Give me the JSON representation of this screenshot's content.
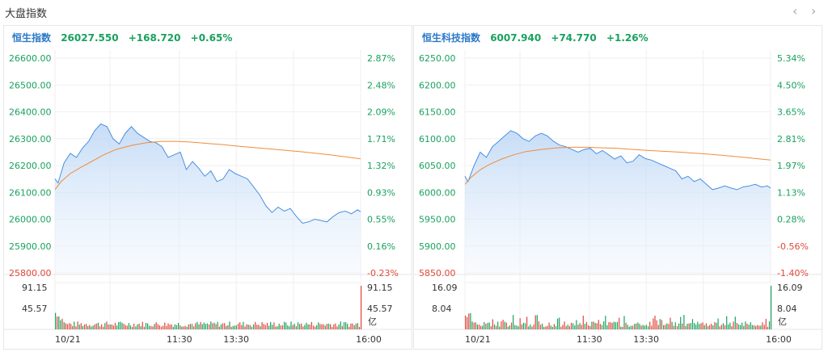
{
  "header": {
    "title": "大盘指数",
    "prev_icon": "chevron-left-icon",
    "next_icon": "chevron-right-icon",
    "prev_glyph": "‹",
    "next_glyph": "›"
  },
  "colors": {
    "up": "#19a15f",
    "down": "#e0483b",
    "name": "#2a78c8",
    "line": "#4a90e2",
    "avg": "#f08c3a"
  },
  "chart_data": [
    {
      "type": "line",
      "name": "恒生指数",
      "last": "26027.550",
      "change": "+168.720",
      "change_pct": "+0.65%",
      "y_ticks": [
        "26600.00",
        "26500.00",
        "26400.00",
        "26300.00",
        "26200.00",
        "26100.00",
        "26000.00",
        "25900.00",
        "25800.00"
      ],
      "y_tick_values": [
        26600,
        26500,
        26400,
        26300,
        26200,
        26100,
        26000,
        25900,
        25800
      ],
      "pct_ticks": [
        "2.87%",
        "2.48%",
        "2.09%",
        "1.71%",
        "1.32%",
        "0.93%",
        "0.55%",
        "0.16%",
        "-0.23%"
      ],
      "ylim": [
        25800,
        26600
      ],
      "x_labels": [
        "10/21",
        "11:30",
        "13:30",
        "16:00"
      ],
      "x_label_pos": [
        0,
        0.407,
        0.593,
        1
      ],
      "price_x": [
        0,
        0.01,
        0.03,
        0.05,
        0.07,
        0.09,
        0.11,
        0.13,
        0.15,
        0.17,
        0.19,
        0.21,
        0.23,
        0.25,
        0.27,
        0.29,
        0.31,
        0.33,
        0.35,
        0.37,
        0.39,
        0.41,
        0.43,
        0.45,
        0.47,
        0.49,
        0.51,
        0.53,
        0.55,
        0.57,
        0.59,
        0.61,
        0.63,
        0.65,
        0.67,
        0.69,
        0.71,
        0.73,
        0.75,
        0.77,
        0.79,
        0.81,
        0.83,
        0.85,
        0.87,
        0.89,
        0.91,
        0.93,
        0.95,
        0.97,
        0.99,
        1.0
      ],
      "price": [
        26150,
        26135,
        26210,
        26245,
        26230,
        26265,
        26290,
        26330,
        26355,
        26345,
        26300,
        26280,
        26320,
        26345,
        26320,
        26305,
        26290,
        26285,
        26270,
        26230,
        26240,
        26250,
        26185,
        26215,
        26190,
        26160,
        26180,
        26140,
        26150,
        26185,
        26170,
        26160,
        26150,
        26120,
        26090,
        26050,
        26025,
        26045,
        26030,
        26040,
        26010,
        25985,
        25990,
        26000,
        25995,
        25990,
        26010,
        26025,
        26030,
        26020,
        26035,
        26027.55
      ],
      "avg_x": [
        0,
        0.02,
        0.05,
        0.08,
        0.12,
        0.16,
        0.2,
        0.25,
        0.3,
        0.35,
        0.4,
        0.45,
        0.5,
        0.55,
        0.6,
        0.7,
        0.8,
        0.9,
        1.0
      ],
      "avg": [
        26110,
        26140,
        26170,
        26190,
        26215,
        26240,
        26260,
        26275,
        26285,
        26290,
        26290,
        26287,
        26282,
        26278,
        26272,
        26262,
        26252,
        26240,
        26225
      ],
      "vol_ticks": [
        "91.15",
        "45.57"
      ],
      "vol_unit": "亿",
      "vol_max": 91.15
    },
    {
      "type": "line",
      "name": "恒生科技指数",
      "last": "6007.940",
      "change": "+74.770",
      "change_pct": "+1.26%",
      "y_ticks": [
        "6250.00",
        "6200.00",
        "6150.00",
        "6100.00",
        "6050.00",
        "6000.00",
        "5950.00",
        "5900.00",
        "5850.00"
      ],
      "y_tick_values": [
        6250,
        6200,
        6150,
        6100,
        6050,
        6000,
        5950,
        5900,
        5850
      ],
      "pct_ticks": [
        "5.34%",
        "4.50%",
        "3.65%",
        "2.81%",
        "1.97%",
        "1.13%",
        "0.28%",
        "-0.56%",
        "-1.40%"
      ],
      "ylim": [
        5850,
        6250
      ],
      "x_labels": [
        "10/21",
        "11:30",
        "13:30",
        "16:00"
      ],
      "x_label_pos": [
        0,
        0.407,
        0.593,
        1
      ],
      "price_x": [
        0,
        0.01,
        0.03,
        0.05,
        0.07,
        0.09,
        0.11,
        0.13,
        0.15,
        0.17,
        0.19,
        0.21,
        0.23,
        0.25,
        0.27,
        0.29,
        0.31,
        0.33,
        0.35,
        0.37,
        0.39,
        0.41,
        0.43,
        0.45,
        0.47,
        0.49,
        0.51,
        0.53,
        0.55,
        0.57,
        0.59,
        0.61,
        0.63,
        0.65,
        0.67,
        0.69,
        0.71,
        0.73,
        0.75,
        0.77,
        0.79,
        0.81,
        0.83,
        0.85,
        0.87,
        0.89,
        0.91,
        0.93,
        0.95,
        0.97,
        0.99,
        1.0
      ],
      "price": [
        6030,
        6020,
        6050,
        6075,
        6065,
        6085,
        6095,
        6105,
        6115,
        6110,
        6100,
        6095,
        6105,
        6110,
        6105,
        6095,
        6088,
        6085,
        6080,
        6075,
        6080,
        6082,
        6072,
        6078,
        6070,
        6062,
        6068,
        6055,
        6058,
        6070,
        6063,
        6060,
        6055,
        6050,
        6045,
        6040,
        6025,
        6030,
        6020,
        6025,
        6015,
        6005,
        6008,
        6012,
        6008,
        6005,
        6010,
        6012,
        6015,
        6010,
        6012,
        6007.94
      ],
      "avg_x": [
        0,
        0.02,
        0.05,
        0.08,
        0.12,
        0.16,
        0.2,
        0.25,
        0.3,
        0.35,
        0.4,
        0.45,
        0.5,
        0.55,
        0.6,
        0.7,
        0.8,
        0.9,
        1.0
      ],
      "avg": [
        6015,
        6028,
        6042,
        6052,
        6062,
        6070,
        6076,
        6080,
        6083,
        6084,
        6084,
        6083,
        6082,
        6080,
        6078,
        6075,
        6071,
        6066,
        6060
      ],
      "vol_ticks": [
        "16.09",
        "8.04"
      ],
      "vol_unit": "亿",
      "vol_max": 16.09
    }
  ]
}
